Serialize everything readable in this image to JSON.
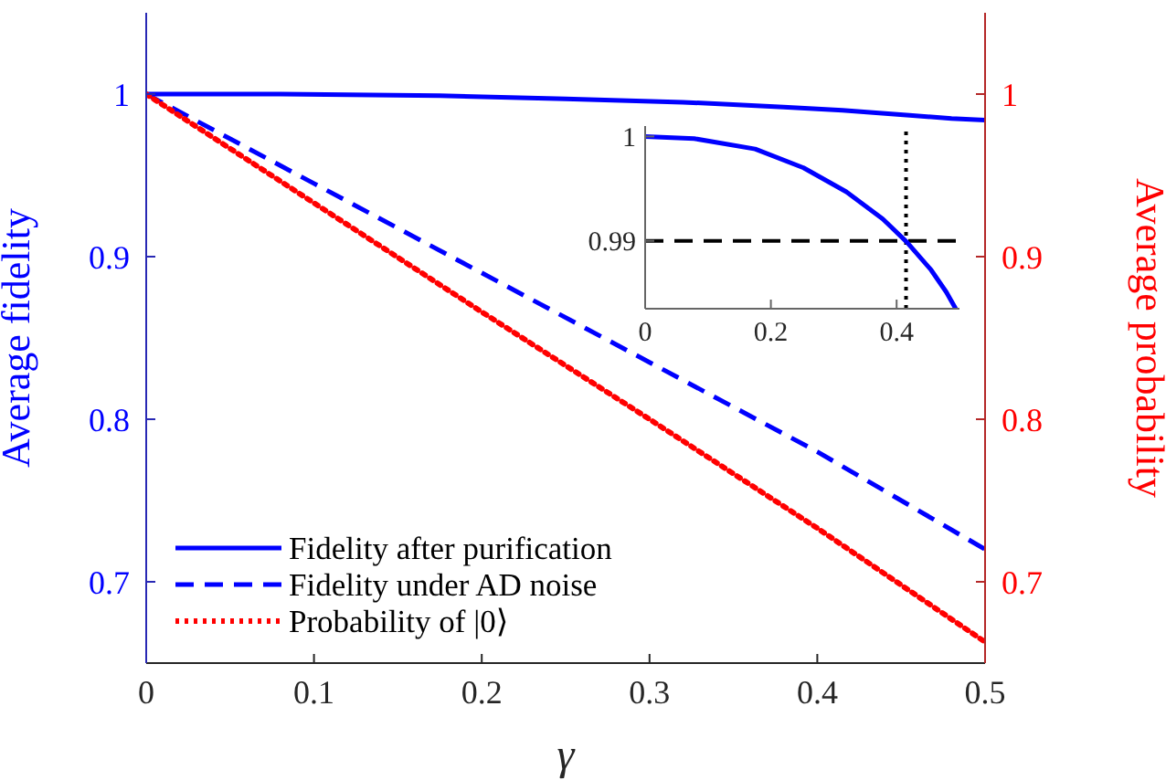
{
  "chart_data": [
    {
      "type": "line",
      "xlabel": "γ",
      "ylabel": "Average fidelity",
      "y2label": "Average probability",
      "xlim": [
        0,
        0.5
      ],
      "xticks": [
        0,
        0.1,
        0.2,
        0.3,
        0.4,
        0.5
      ],
      "ylim": [
        0.65,
        1.05
      ],
      "yticks": [
        0.7,
        0.8,
        0.9,
        1
      ],
      "y2lim": [
        0.65,
        1.05
      ],
      "y2ticks": [
        0.7,
        0.8,
        0.9,
        1
      ],
      "legend": "bottom left",
      "grid": false,
      "series": [
        {
          "name": "Fidelity after purification",
          "color": "#0000ff",
          "line_style": "solid",
          "x": [
            0,
            0.08,
            0.175,
            0.25,
            0.32,
            0.38,
            0.415,
            0.455,
            0.48,
            0.5
          ],
          "values": [
            1,
            1,
            0.999,
            0.997,
            0.995,
            0.992,
            0.99,
            0.987,
            0.985,
            0.984
          ]
        },
        {
          "name": "Fidelity under AD noise",
          "color": "#0000ff",
          "line_style": "dashed",
          "x": [
            0,
            0.1,
            0.2,
            0.3,
            0.4,
            0.5
          ],
          "values": [
            1,
            0.945,
            0.89,
            0.835,
            0.78,
            0.72
          ]
        },
        {
          "name": "Probability of |0⟩",
          "color": "#ff0000",
          "line_style": "dotted",
          "axis": "y2",
          "x": [
            0,
            0.1,
            0.2,
            0.3,
            0.4,
            0.5
          ],
          "values": [
            1,
            0.933,
            0.866,
            0.8,
            0.733,
            0.663
          ]
        }
      ]
    },
    {
      "type": "line",
      "xlim": [
        0,
        0.5
      ],
      "xticks": [
        0,
        0.2,
        0.4
      ],
      "ylim": [
        0.9835,
        1.001
      ],
      "yticks": [
        0.99,
        1
      ],
      "grid": false,
      "series": [
        {
          "color": "#0000ff",
          "line_style": "solid",
          "x": [
            0,
            0.078,
            0.175,
            0.252,
            0.32,
            0.378,
            0.416,
            0.455,
            0.479,
            0.494
          ],
          "values": [
            1,
            0.9998,
            0.9988,
            0.997,
            0.9947,
            0.9921,
            0.9899,
            0.9872,
            0.9851,
            0.9835
          ]
        }
      ],
      "ref_lines": [
        {
          "axis": "x",
          "value": 0.415,
          "color": "#000000",
          "line_style": "dotted"
        },
        {
          "axis": "y",
          "value": 0.99,
          "color": "#000000",
          "line_style": "dashed"
        }
      ]
    }
  ]
}
